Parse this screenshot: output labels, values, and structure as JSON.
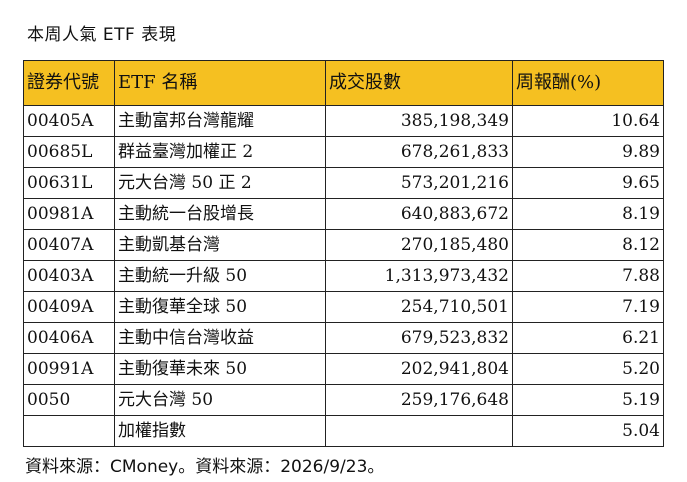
{
  "title": "本周人氣 ETF 表現",
  "table": {
    "headers": [
      "證券代號",
      "ETF 名稱",
      "成交股數",
      "周報酬(%)"
    ],
    "rows": [
      {
        "code": "00405A",
        "name": "主動富邦台灣龍耀",
        "volume": "385,198,349",
        "ret": "10.64"
      },
      {
        "code": "00685L",
        "name": "群益臺灣加權正 2",
        "volume": "678,261,833",
        "ret": "9.89"
      },
      {
        "code": "00631L",
        "name": "元大台灣 50 正 2",
        "volume": "573,201,216",
        "ret": "9.65"
      },
      {
        "code": "00981A",
        "name": "主動統一台股增長",
        "volume": "640,883,672",
        "ret": "8.19"
      },
      {
        "code": "00407A",
        "name": "主動凱基台灣",
        "volume": "270,185,480",
        "ret": "8.12"
      },
      {
        "code": "00403A",
        "name": "主動統一升級 50",
        "volume": "1,313,973,432",
        "ret": "7.88"
      },
      {
        "code": "00409A",
        "name": "主動復華全球 50",
        "volume": "254,710,501",
        "ret": "7.19"
      },
      {
        "code": "00406A",
        "name": "主動中信台灣收益",
        "volume": "679,523,832",
        "ret": "6.21"
      },
      {
        "code": "00991A",
        "name": "主動復華未來 50",
        "volume": "202,941,804",
        "ret": "5.20"
      },
      {
        "code": "0050",
        "name": "元大台灣 50",
        "volume": "259,176,648",
        "ret": "5.19"
      },
      {
        "code": "",
        "name": "加權指數",
        "volume": "",
        "ret": "5.04"
      }
    ]
  },
  "footer": "資料來源：CMoney。資料來源：2026/9/23。"
}
